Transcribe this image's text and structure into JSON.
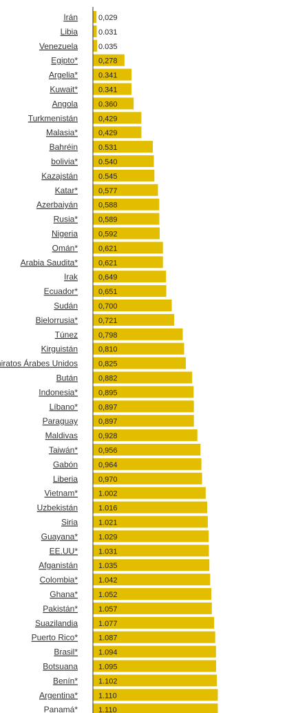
{
  "chart_data": {
    "type": "bar",
    "orientation": "horizontal",
    "bar_color": "#e3bd00",
    "label_color": "#333333",
    "value_label_color": "#222222",
    "xlim": [
      0,
      1.2
    ],
    "categories": [
      "Irán",
      "Libia",
      "Venezuela",
      "Egipto*",
      "Argelia*",
      "Kuwait*",
      "Angola",
      "Turkmenistán",
      "Malasia*",
      "Bahréin",
      "bolivia*",
      "Kazajstán",
      "Katar*",
      "Azerbaiyán",
      "Rusia*",
      "Nigeria",
      "Omán*",
      "Arabia Saudita*",
      "Irak",
      "Ecuador*",
      "Sudán",
      "Bielorrusia*",
      "Túnez",
      "Kirguistán",
      "Emiratos Árabes Unidos",
      "Bután",
      "Indonesia*",
      "Líbano*",
      "Paraguay",
      "Maldivas",
      "Taiwán*",
      "Gabón",
      "Liberia",
      "Vietnam*",
      "Uzbekistán",
      "Siria",
      "Guayana*",
      "EE.UU*",
      "Afganistán",
      "Colombia*",
      "Ghana*",
      "Pakistán*",
      "Suazilandia",
      "Puerto Rico*",
      "Brasil*",
      "Botsuana",
      "Benín*",
      "Argentina*",
      "Panamá*"
    ],
    "values": [
      0.029,
      0.031,
      0.035,
      0.278,
      0.341,
      0.341,
      0.36,
      0.429,
      0.429,
      0.531,
      0.54,
      0.545,
      0.577,
      0.588,
      0.589,
      0.592,
      0.621,
      0.621,
      0.649,
      0.651,
      0.7,
      0.721,
      0.798,
      0.81,
      0.825,
      0.882,
      0.895,
      0.897,
      0.897,
      0.928,
      0.956,
      0.964,
      0.97,
      1.002,
      1.016,
      1.021,
      1.029,
      1.031,
      1.035,
      1.042,
      1.052,
      1.057,
      1.077,
      1.087,
      1.094,
      1.095,
      1.102,
      1.11,
      1.11
    ],
    "value_labels": [
      "0,029",
      "0.031",
      "0.035",
      "0,278",
      "0.341",
      "0.341",
      "0.360",
      "0,429",
      "0,429",
      "0.531",
      "0.540",
      "0.545",
      "0,577",
      "0,588",
      "0,589",
      "0,592",
      "0,621",
      "0,621",
      "0,649",
      "0,651",
      "0,700",
      "0,721",
      "0,798",
      "0,810",
      "0,825",
      "0,882",
      "0,895",
      "0,897",
      "0,897",
      "0,928",
      "0,956",
      "0,964",
      "0,970",
      "1.002",
      "1.016",
      "1.021",
      "1.029",
      "1.031",
      "1.035",
      "1.042",
      "1.052",
      "1.057",
      "1.077",
      "1.087",
      "1.094",
      "1.095",
      "1.102",
      "1.110",
      "1.110"
    ]
  }
}
